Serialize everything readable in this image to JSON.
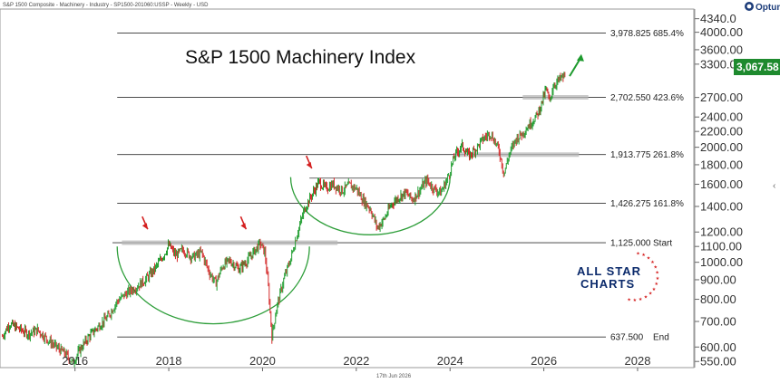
{
  "chart_data": {
    "type": "candlestick",
    "header": "S&P 1500 Composite - Machinery - Industry - SP1500-201060:USSP - Weekly - USD",
    "title": "S&P 1500 Machinery Index",
    "footer_date": "17th Jun 2026",
    "brand": "Optuma",
    "logo_line1": "ALL STAR",
    "logo_line2": "CHARTS",
    "last_price_label": "3,067.58",
    "last_price": 3067.58,
    "y_scale": "log",
    "ylim": [
      530,
      4600
    ],
    "xlim": [
      2014.4,
      2029.2
    ],
    "y_ticks": [
      {
        "value": 550,
        "label": "550.00"
      },
      {
        "value": 600,
        "label": "600.00"
      },
      {
        "value": 700,
        "label": "700.00"
      },
      {
        "value": 800,
        "label": "800.00"
      },
      {
        "value": 900,
        "label": "900.00"
      },
      {
        "value": 1000,
        "label": "1000.00"
      },
      {
        "value": 1100,
        "label": "1100.00"
      },
      {
        "value": 1200,
        "label": "1200.00"
      },
      {
        "value": 1400,
        "label": "1400.00"
      },
      {
        "value": 1600,
        "label": "1600.00"
      },
      {
        "value": 1800,
        "label": "1800.00"
      },
      {
        "value": 2000,
        "label": "2000.00"
      },
      {
        "value": 2200,
        "label": "2200.00"
      },
      {
        "value": 2400,
        "label": "2400.00"
      },
      {
        "value": 2700,
        "label": "2700.00"
      },
      {
        "value": 3300,
        "label": "3300.00"
      },
      {
        "value": 3600,
        "label": "3600.00"
      },
      {
        "value": 4000,
        "label": "4000.00"
      },
      {
        "value": 4340,
        "label": "4340.0"
      }
    ],
    "x_ticks": [
      {
        "value": 2016,
        "label": "2016"
      },
      {
        "value": 2018,
        "label": "2018"
      },
      {
        "value": 2020,
        "label": "2020"
      },
      {
        "value": 2022,
        "label": "2022"
      },
      {
        "value": 2024,
        "label": "2024"
      },
      {
        "value": 2026,
        "label": "2026"
      },
      {
        "value": 2028,
        "label": "2028"
      }
    ],
    "fib_levels": [
      {
        "value": 3978.825,
        "label": "3,978.825",
        "pct": "685.4%"
      },
      {
        "value": 2702.55,
        "label": "2,702.550",
        "pct": "423.6%"
      },
      {
        "value": 1913.775,
        "label": "1,913.775",
        "pct": "261.8%"
      },
      {
        "value": 1426.275,
        "label": "1,426.275",
        "pct": "161.8%"
      },
      {
        "value": 1125.0,
        "label": "1,125.000",
        "pct": "Start"
      },
      {
        "value": 637.5,
        "label": "637.500",
        "pct": "End"
      }
    ],
    "price_path": [
      [
        2014.45,
        640
      ],
      [
        2014.6,
        690
      ],
      [
        2014.8,
        670
      ],
      [
        2015.0,
        650
      ],
      [
        2015.2,
        665
      ],
      [
        2015.4,
        630
      ],
      [
        2015.6,
        600
      ],
      [
        2015.8,
        575
      ],
      [
        2015.95,
        545
      ],
      [
        2016.1,
        590
      ],
      [
        2016.3,
        640
      ],
      [
        2016.5,
        680
      ],
      [
        2016.7,
        720
      ],
      [
        2016.9,
        790
      ],
      [
        2017.1,
        830
      ],
      [
        2017.3,
        860
      ],
      [
        2017.5,
        900
      ],
      [
        2017.7,
        960
      ],
      [
        2017.9,
        1050
      ],
      [
        2018.0,
        1110
      ],
      [
        2018.15,
        1040
      ],
      [
        2018.3,
        1080
      ],
      [
        2018.5,
        1030
      ],
      [
        2018.7,
        1060
      ],
      [
        2018.85,
        950
      ],
      [
        2019.0,
        880
      ],
      [
        2019.15,
        980
      ],
      [
        2019.3,
        1010
      ],
      [
        2019.5,
        960
      ],
      [
        2019.7,
        1020
      ],
      [
        2019.85,
        1080
      ],
      [
        2019.95,
        1120
      ],
      [
        2020.05,
        1060
      ],
      [
        2020.12,
        870
      ],
      [
        2020.2,
        640
      ],
      [
        2020.3,
        760
      ],
      [
        2020.45,
        900
      ],
      [
        2020.6,
        1020
      ],
      [
        2020.75,
        1200
      ],
      [
        2020.9,
        1380
      ],
      [
        2021.05,
        1500
      ],
      [
        2021.2,
        1620
      ],
      [
        2021.35,
        1560
      ],
      [
        2021.5,
        1600
      ],
      [
        2021.7,
        1540
      ],
      [
        2021.85,
        1590
      ],
      [
        2022.0,
        1560
      ],
      [
        2022.15,
        1450
      ],
      [
        2022.3,
        1380
      ],
      [
        2022.45,
        1230
      ],
      [
        2022.6,
        1300
      ],
      [
        2022.75,
        1420
      ],
      [
        2022.9,
        1480
      ],
      [
        2023.05,
        1520
      ],
      [
        2023.2,
        1460
      ],
      [
        2023.35,
        1540
      ],
      [
        2023.5,
        1640
      ],
      [
        2023.65,
        1560
      ],
      [
        2023.8,
        1520
      ],
      [
        2023.95,
        1660
      ],
      [
        2024.1,
        1900
      ],
      [
        2024.25,
        2020
      ],
      [
        2024.4,
        1900
      ],
      [
        2024.55,
        1980
      ],
      [
        2024.7,
        2100
      ],
      [
        2024.85,
        2180
      ],
      [
        2024.95,
        2080
      ],
      [
        2025.05,
        1950
      ],
      [
        2025.15,
        1700
      ],
      [
        2025.25,
        1900
      ],
      [
        2025.4,
        2100
      ],
      [
        2025.55,
        2180
      ],
      [
        2025.7,
        2300
      ],
      [
        2025.85,
        2420
      ],
      [
        2025.95,
        2600
      ],
      [
        2026.05,
        2850
      ],
      [
        2026.12,
        2620
      ],
      [
        2026.2,
        2900
      ],
      [
        2026.3,
        2980
      ],
      [
        2026.38,
        3040
      ],
      [
        2026.45,
        3067.58
      ]
    ],
    "annotations": {
      "red_arrows": [
        [
          2017.55,
          1220
        ],
        [
          2019.65,
          1220
        ],
        [
          2021.05,
          1760
        ]
      ],
      "green_arrow": {
        "from": [
          2026.55,
          3070
        ],
        "to": [
          2026.8,
          3450
        ]
      },
      "resistance_zones": [
        {
          "x0": 2017.0,
          "x1": 2021.6,
          "value": 1125
        },
        {
          "x0": 2024.1,
          "x1": 2026.75,
          "value": 1913
        },
        {
          "x0": 2025.55,
          "x1": 2026.95,
          "value": 2702
        }
      ],
      "base_line": {
        "x0": 2021.0,
        "x1": 2023.95,
        "value": 1660
      },
      "arcs": [
        {
          "x0": 2016.9,
          "x1": 2021.0,
          "top": 1100,
          "bottom": 690
        },
        {
          "x0": 2020.6,
          "x1": 2024.0,
          "top": 1670,
          "bottom": 1180
        }
      ]
    }
  }
}
